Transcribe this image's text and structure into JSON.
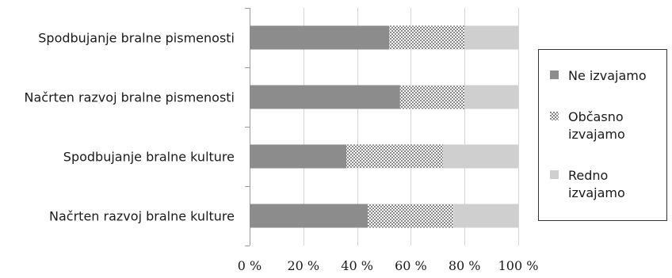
{
  "chart_data": {
    "type": "bar",
    "orientation": "horizontal",
    "stacked": true,
    "categories": [
      "Spodbujanje bralne pismenosti",
      "Načrten razvoj bralne pismenosti",
      "Spodbujanje bralne kulture",
      "Načrten razvoj bralne kulture"
    ],
    "series": [
      {
        "name": "Ne izvajamo",
        "values": [
          52,
          56,
          36,
          44
        ],
        "color": "#8c8c8c",
        "pattern": "solid"
      },
      {
        "name": "Občasno izvajamo",
        "values": [
          28,
          24,
          36,
          32
        ],
        "color": "#4a4a4a",
        "pattern": "dots"
      },
      {
        "name": "Redno izvajamo",
        "values": [
          20,
          20,
          28,
          24
        ],
        "color": "#cfcfcf",
        "pattern": "solid"
      }
    ],
    "xlim": [
      0,
      100
    ],
    "xticks": [
      "0 %",
      "20 %",
      "40 %",
      "60 %",
      "80 %",
      "100 %"
    ],
    "grid": "vertical",
    "legend_position": "right"
  }
}
